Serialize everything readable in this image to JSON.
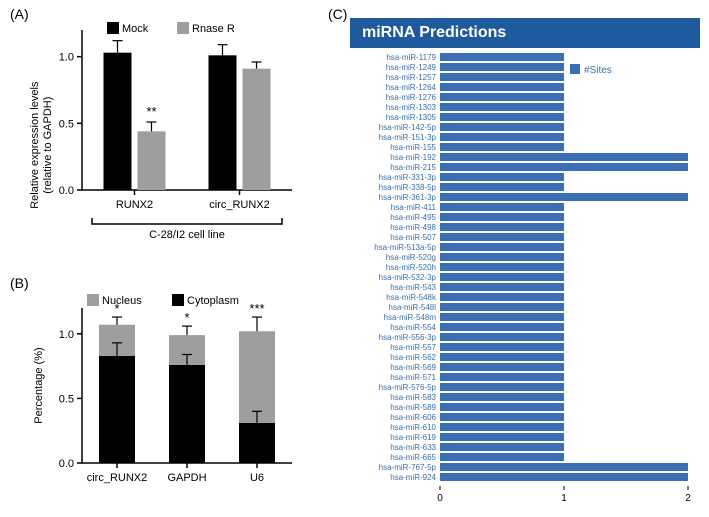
{
  "panelA": {
    "label": "(A)",
    "type": "grouped-bar",
    "ylabel_line1": "Relative expression levels",
    "ylabel_line2": "(relative to GAPDH)",
    "legend": [
      {
        "name": "Mock",
        "color": "#000000"
      },
      {
        "name": "Rnase R",
        "color": "#9e9e9e"
      }
    ],
    "groups": [
      "RUNX2",
      "circ_RUNX2"
    ],
    "series": {
      "Mock": {
        "values": [
          1.03,
          1.01
        ],
        "errors": [
          0.09,
          0.08
        ],
        "color": "#000000"
      },
      "RnaseR": {
        "values": [
          0.44,
          0.91
        ],
        "errors": [
          0.07,
          0.05
        ],
        "color": "#9e9e9e"
      }
    },
    "significance": [
      {
        "group_idx": 0,
        "series": "RnaseR",
        "symbol": "**"
      }
    ],
    "ylim": [
      0,
      1.2
    ],
    "ytick_step": 0.5,
    "cell_line": "C-28/I2 cell line"
  },
  "panelB": {
    "label": "(B)",
    "type": "stacked-bar",
    "ylabel": "Percentage (%)",
    "legend": [
      {
        "name": "Nucleus",
        "color": "#9e9e9e"
      },
      {
        "name": "Cytoplasm",
        "color": "#000000"
      }
    ],
    "categories": [
      "circ_RUNX2",
      "GAPDH",
      "U6"
    ],
    "data": [
      {
        "cytoplasm": 0.83,
        "nucleus": 0.24,
        "sig": "*",
        "err_cyto": 0.1,
        "err_nuc": 0.06
      },
      {
        "cytoplasm": 0.76,
        "nucleus": 0.23,
        "sig": "*",
        "err_cyto": 0.08,
        "err_nuc": 0.07
      },
      {
        "cytoplasm": 0.31,
        "nucleus": 0.71,
        "sig": "***",
        "err_cyto": 0.09,
        "err_nuc": 0.11
      }
    ],
    "ylim": [
      0,
      1.2
    ],
    "ytick_step": 0.5,
    "colors": {
      "cytoplasm": "#000000",
      "nucleus": "#9e9e9e"
    }
  },
  "panelC": {
    "label": "(C)",
    "title": "miRNA Predictions",
    "type": "horizontal-bar",
    "legend_label": "#Sites",
    "xlim": [
      0,
      2
    ],
    "xticks": [
      0,
      1,
      2
    ],
    "bar_color": "#3a6fb5",
    "items": [
      {
        "name": "hsa-miR-1179",
        "sites": 1
      },
      {
        "name": "hsa-miR-1249",
        "sites": 1
      },
      {
        "name": "hsa-miR-1257",
        "sites": 1
      },
      {
        "name": "hsa-miR-1264",
        "sites": 1
      },
      {
        "name": "hsa-miR-1276",
        "sites": 1
      },
      {
        "name": "hsa-miR-1303",
        "sites": 1
      },
      {
        "name": "hsa-miR-1305",
        "sites": 1
      },
      {
        "name": "hsa-miR-142-5p",
        "sites": 1
      },
      {
        "name": "hsa-miR-151-3p",
        "sites": 1
      },
      {
        "name": "hsa-miR-155",
        "sites": 1
      },
      {
        "name": "hsa-miR-192",
        "sites": 2
      },
      {
        "name": "hsa-miR-215",
        "sites": 2
      },
      {
        "name": "hsa-miR-331-3p",
        "sites": 1
      },
      {
        "name": "hsa-miR-338-5p",
        "sites": 1
      },
      {
        "name": "hsa-miR-361-3p",
        "sites": 2
      },
      {
        "name": "hsa-miR-411",
        "sites": 1
      },
      {
        "name": "hsa-miR-495",
        "sites": 1
      },
      {
        "name": "hsa-miR-498",
        "sites": 1
      },
      {
        "name": "hsa-miR-507",
        "sites": 1
      },
      {
        "name": "hsa-miR-513a-5p",
        "sites": 1
      },
      {
        "name": "hsa-miR-520g",
        "sites": 1
      },
      {
        "name": "hsa-miR-520h",
        "sites": 1
      },
      {
        "name": "hsa-miR-532-3p",
        "sites": 1
      },
      {
        "name": "hsa-miR-543",
        "sites": 1
      },
      {
        "name": "hsa-miR-548k",
        "sites": 1
      },
      {
        "name": "hsa-miR-548l",
        "sites": 1
      },
      {
        "name": "hsa-miR-548m",
        "sites": 1
      },
      {
        "name": "hsa-miR-554",
        "sites": 1
      },
      {
        "name": "hsa-miR-556-3p",
        "sites": 1
      },
      {
        "name": "hsa-miR-557",
        "sites": 1
      },
      {
        "name": "hsa-miR-562",
        "sites": 1
      },
      {
        "name": "hsa-miR-569",
        "sites": 1
      },
      {
        "name": "hsa-miR-571",
        "sites": 1
      },
      {
        "name": "hsa-miR-576-5p",
        "sites": 1
      },
      {
        "name": "hsa-miR-583",
        "sites": 1
      },
      {
        "name": "hsa-miR-589",
        "sites": 1
      },
      {
        "name": "hsa-miR-606",
        "sites": 1
      },
      {
        "name": "hsa-miR-610",
        "sites": 1
      },
      {
        "name": "hsa-miR-619",
        "sites": 1
      },
      {
        "name": "hsa-miR-633",
        "sites": 1
      },
      {
        "name": "hsa-miR-665",
        "sites": 1
      },
      {
        "name": "hsa-miR-767-5p",
        "sites": 2
      },
      {
        "name": "hsa-miR-924",
        "sites": 2
      }
    ]
  }
}
